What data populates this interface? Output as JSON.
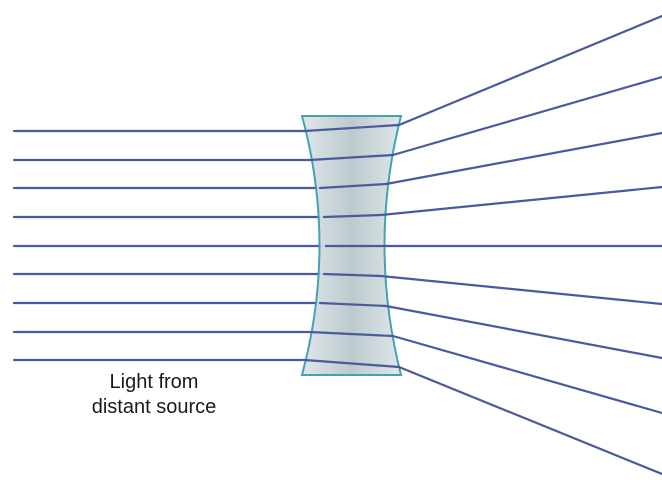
{
  "caption": {
    "line1": "Light from",
    "line2": "distant source"
  },
  "colors": {
    "ray": "#4a5a9e",
    "lens_fill": "#c5d2d6",
    "lens_edge": "#3e9cb3",
    "background": "#ffffff"
  },
  "lens": {
    "type": "concave",
    "shape": "biconcave diverging lens"
  },
  "rays": {
    "count": 9,
    "incoming": "parallel, from left",
    "outgoing": "diverging to the right"
  }
}
